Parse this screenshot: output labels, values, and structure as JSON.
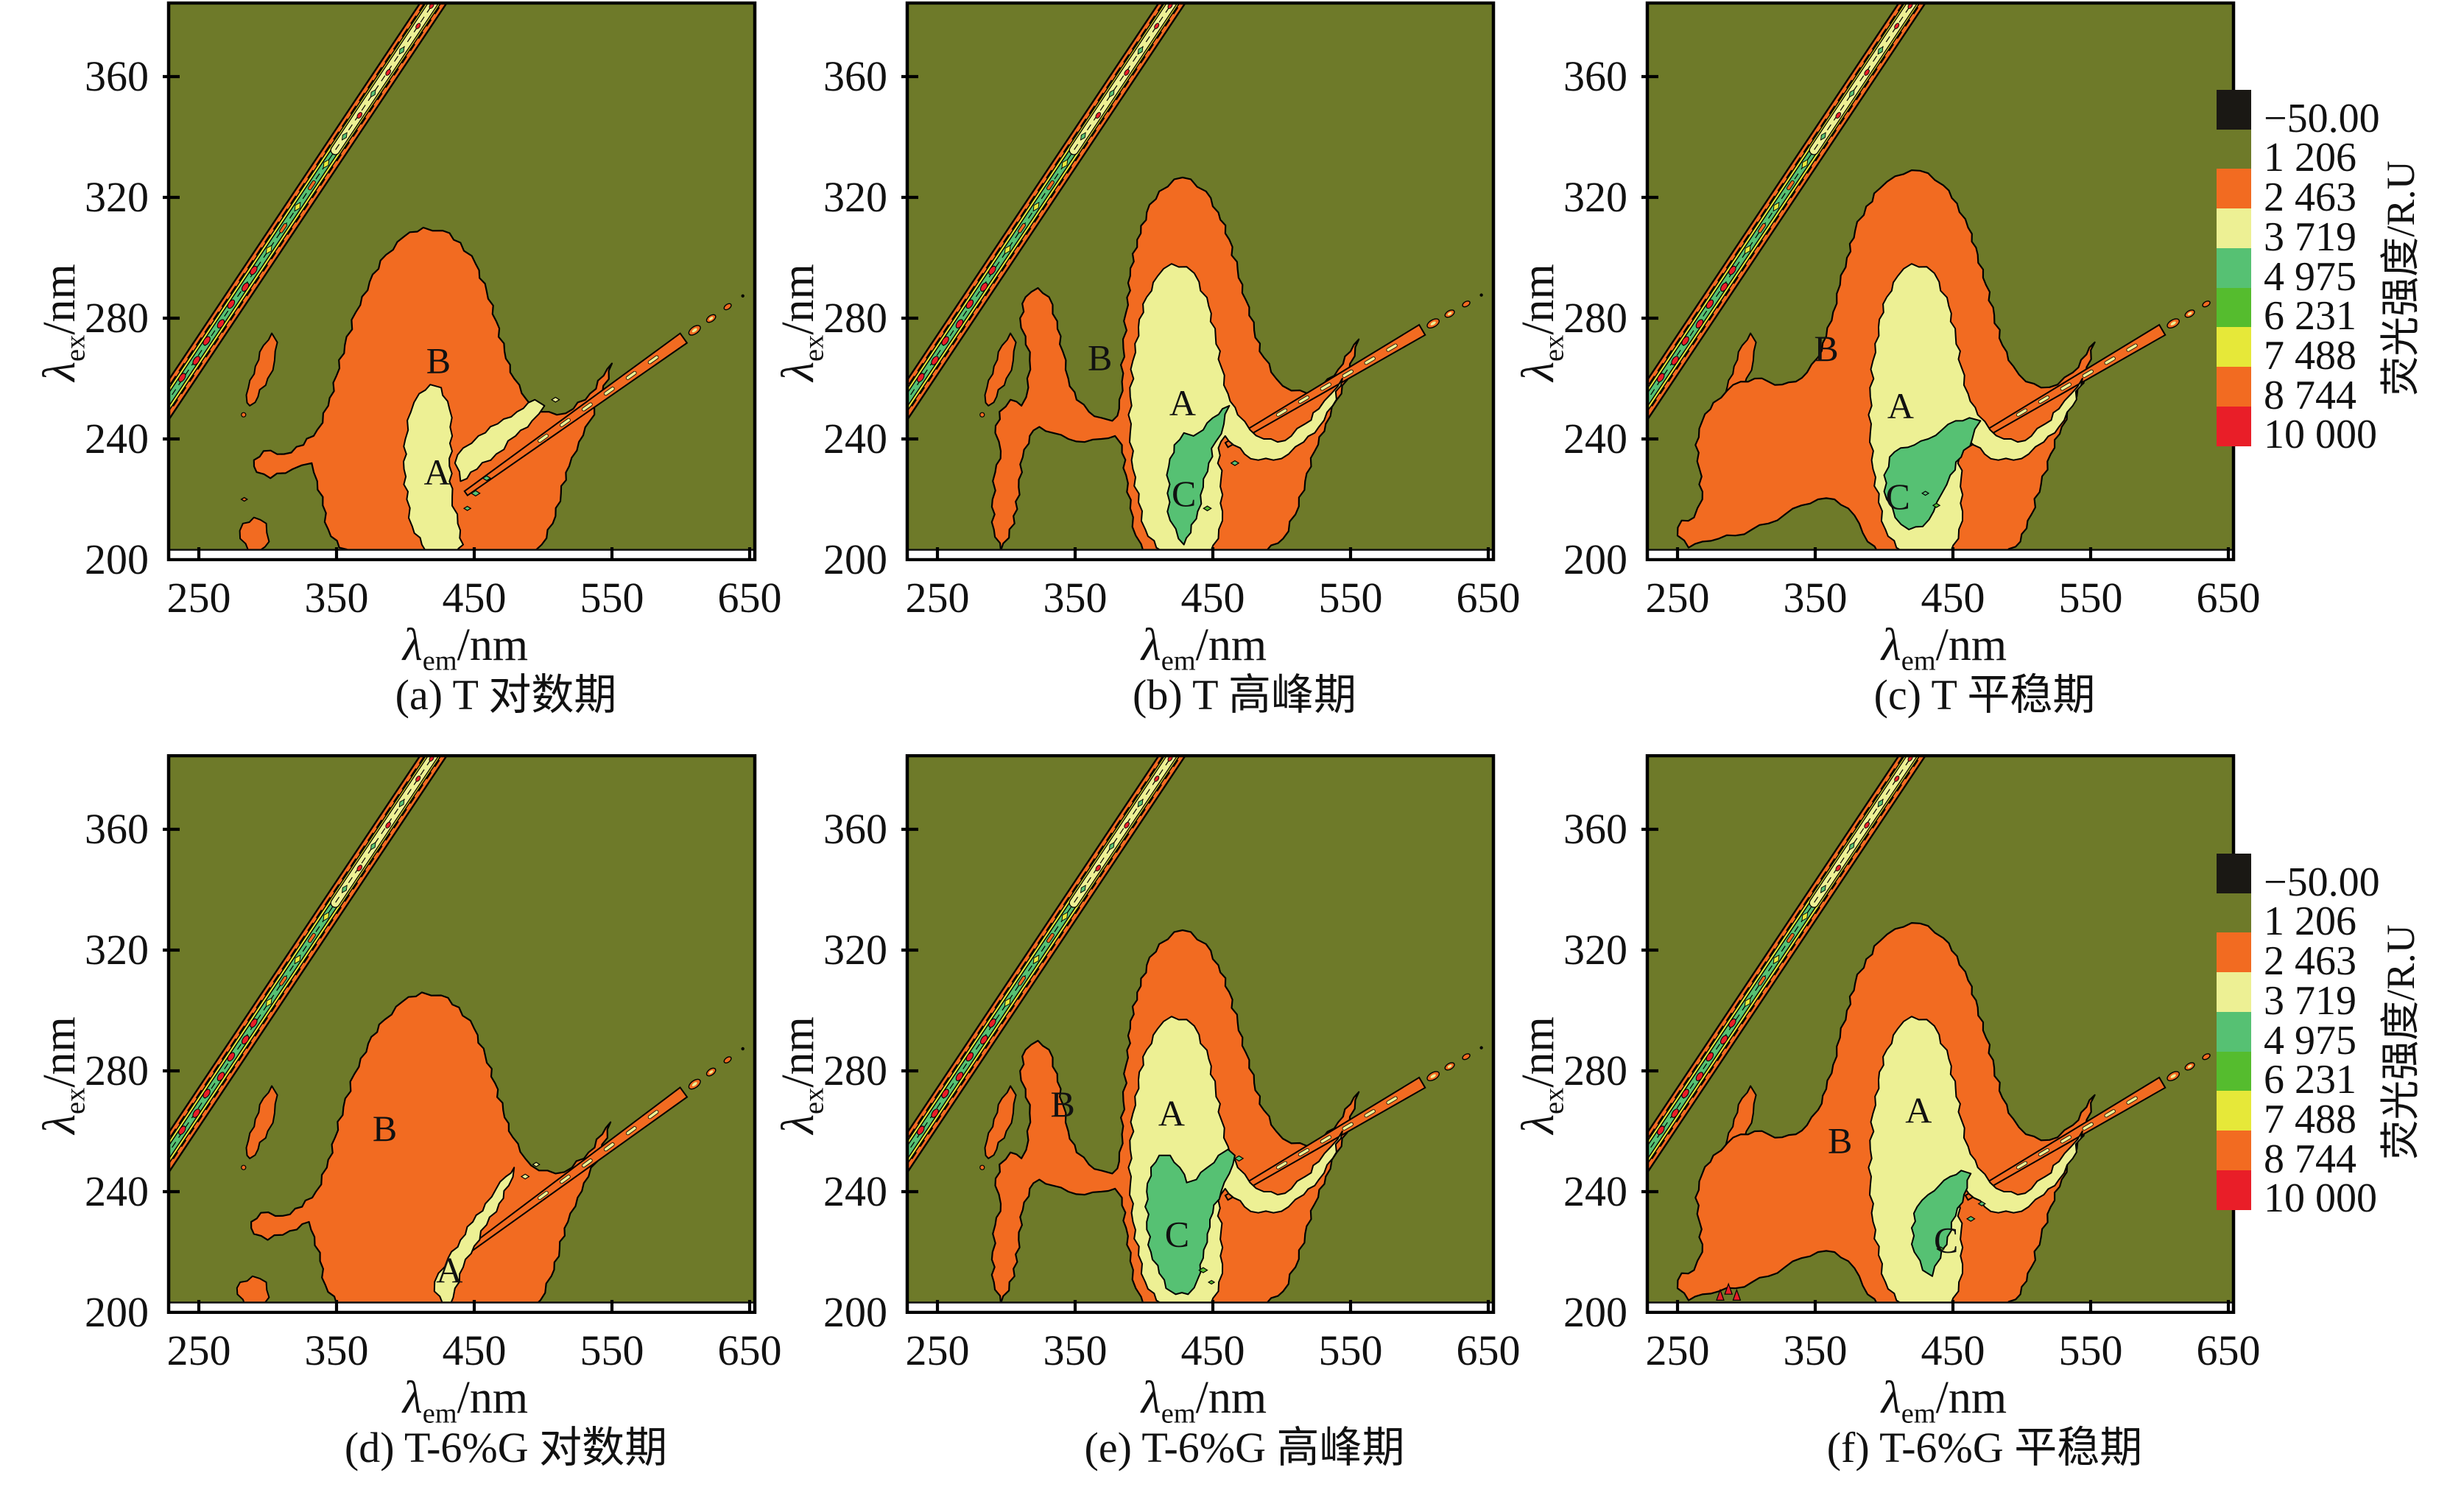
{
  "figure": {
    "colors": {
      "olive": "#6E7A29",
      "orange": "#F26B21",
      "paleYellow": "#EDF094",
      "green": "#56C173",
      "brightGreen": "#55BC2E",
      "yellow": "#E6E839",
      "red": "#E91E28",
      "black": "#1A1814",
      "axis": "#000000",
      "text": "#111111"
    },
    "axes": {
      "x_label_sym": "λ",
      "x_label_sub": "em",
      "x_label_unit": "/nm",
      "y_label_sym": "λ",
      "y_label_sub": "ex",
      "y_label_unit": "/nm",
      "x_ticks": [
        "250",
        "350",
        "450",
        "550",
        "650"
      ],
      "y_ticks": [
        "360",
        "320",
        "280",
        "240",
        "200"
      ]
    },
    "legend": {
      "title": "荧光强度/R.U",
      "levels": [
        "−50.00",
        "1 206",
        "2 463",
        "3 719",
        "4 975",
        "6 231",
        "7 488",
        "8 744",
        "10 000"
      ],
      "block_color_keys": [
        "black",
        "olive",
        "orange",
        "paleYellow",
        "green",
        "brightGreen",
        "yellow",
        "orange",
        "red"
      ]
    },
    "panels": [
      {
        "id": "a",
        "caption": "(a) T 对数期",
        "variant": "a",
        "labels": [
          {
            "t": "B",
            "em": 424,
            "ex": 266
          },
          {
            "t": "A",
            "em": 423,
            "ex": 229
          }
        ]
      },
      {
        "id": "b",
        "caption": "(b) T 高峰期",
        "variant": "b",
        "labels": [
          {
            "t": "B",
            "em": 368,
            "ex": 267
          },
          {
            "t": "A",
            "em": 428,
            "ex": 252
          },
          {
            "t": "C",
            "em": 429,
            "ex": 222
          }
        ]
      },
      {
        "id": "c",
        "caption": "(c) T 平稳期",
        "variant": "c",
        "labels": [
          {
            "t": "B",
            "em": 358,
            "ex": 270
          },
          {
            "t": "A",
            "em": 412,
            "ex": 251
          },
          {
            "t": "C",
            "em": 410,
            "ex": 221
          }
        ]
      },
      {
        "id": "d",
        "caption": "(d) T-6%G 对数期",
        "variant": "d",
        "labels": [
          {
            "t": "B",
            "em": 385,
            "ex": 261
          },
          {
            "t": "A",
            "em": 432,
            "ex": 214
          }
        ]
      },
      {
        "id": "e",
        "caption": "(e) T-6%G 高峰期",
        "variant": "e",
        "labels": [
          {
            "t": "B",
            "em": 341,
            "ex": 269
          },
          {
            "t": "A",
            "em": 420,
            "ex": 266
          },
          {
            "t": "C",
            "em": 424,
            "ex": 226
          }
        ]
      },
      {
        "id": "f",
        "caption": "(f) T-6%G 平稳期",
        "variant": "f",
        "labels": [
          {
            "t": "B",
            "em": 368,
            "ex": 257
          },
          {
            "t": "A",
            "em": 425,
            "ex": 267
          },
          {
            "t": "C",
            "em": 445,
            "ex": 224
          }
        ]
      }
    ]
  },
  "chart_data": {
    "type": "contour-eem-grid",
    "title": "Excitation-emission matrix fluorescence contour plots",
    "xlabel": "λem/nm",
    "ylabel": "λex/nm",
    "intensity_label": "荧光强度/R.U",
    "xlim": [
      227,
      655
    ],
    "ylim": [
      200,
      384
    ],
    "x_ticks": [
      250,
      350,
      450,
      550,
      650
    ],
    "y_ticks": [
      360,
      320,
      280,
      240,
      200
    ],
    "levels": [
      -50.0,
      1206,
      2463,
      3719,
      4975,
      6231,
      7488,
      8744,
      10000
    ],
    "level_colors": [
      "#1A1814",
      "#6E7A29",
      "#F26B21",
      "#EDF094",
      "#56C173",
      "#55BC2E",
      "#E6E839",
      "#F26B21",
      "#E91E28"
    ],
    "grid": false,
    "legend_position": "right-of-each-row",
    "panels": [
      {
        "id": "a",
        "sample": "T",
        "phase": "对数期",
        "caption": "(a) T 对数期",
        "peaks": [
          {
            "label": "B",
            "em": 424,
            "ex": 266,
            "level": "2463-3719"
          },
          {
            "label": "A",
            "em": 423,
            "ex": 229,
            "level": "3719-4975"
          }
        ],
        "features": [
          "first-order Rayleigh scatter band (em≈ex) with red >8744 cores",
          "second-order scatter line toward (650,289)",
          "small orange lobe em≈288-307 ex≈251-276",
          "detached orange spot em≈280-301 ex≈203-214"
        ]
      },
      {
        "id": "b",
        "sample": "T",
        "phase": "高峰期",
        "caption": "(b) T 高峰期",
        "peaks": [
          {
            "label": "B",
            "em": 368,
            "ex": 267,
            "level": "2463-3719"
          },
          {
            "label": "A",
            "em": 428,
            "ex": 252,
            "level": "3719-4975"
          },
          {
            "label": "C",
            "em": 429,
            "ex": 222,
            "level": "4975-6231"
          }
        ],
        "features": [
          "large 3719 region em≈390-545 ex≈200-298",
          "green 4975 core em≈417-462 ex≈205-251",
          "Rayleigh and second-order scatter bands"
        ]
      },
      {
        "id": "c",
        "sample": "T",
        "phase": "平稳期",
        "caption": "(c) T 平稳期",
        "peaks": [
          {
            "label": "B",
            "em": 358,
            "ex": 270,
            "level": "2463-3719"
          },
          {
            "label": "A",
            "em": 412,
            "ex": 251,
            "level": "3719-4975"
          },
          {
            "label": "C",
            "em": 410,
            "ex": 221,
            "level": "4975-6231"
          }
        ],
        "features": [
          "large 3719 region with green 4975 core em≈400-470 ex≈210-238",
          "scatter bands as in (a)"
        ]
      },
      {
        "id": "d",
        "sample": "T-6%G",
        "phase": "对数期",
        "caption": "(d) T-6%G 对数期",
        "peaks": [
          {
            "label": "B",
            "em": 385,
            "ex": 261,
            "level": "2463-3719"
          },
          {
            "label": "A",
            "em": 432,
            "ex": 214,
            "level": "3719"
          }
        ],
        "features": [
          "mostly 2463 orange region; only thin 3719 sliver along second-order line",
          "detached orange spot bottom-left"
        ]
      },
      {
        "id": "e",
        "sample": "T-6%G",
        "phase": "高峰期",
        "caption": "(e) T-6%G 高峰期",
        "peaks": [
          {
            "label": "B",
            "em": 341,
            "ex": 269,
            "level": "2463-3719"
          },
          {
            "label": "A",
            "em": 420,
            "ex": 266,
            "level": "3719-4975"
          },
          {
            "label": "C",
            "em": 424,
            "ex": 226,
            "level": "4975-6231"
          }
        ],
        "features": [
          "largest green 4975 region em≈400-470 ex≈205-252 with 6231 speck"
        ]
      },
      {
        "id": "f",
        "sample": "T-6%G",
        "phase": "平稳期",
        "caption": "(f) T-6%G 平稳期",
        "peaks": [
          {
            "label": "B",
            "em": 368,
            "ex": 257,
            "level": "2463-3719"
          },
          {
            "label": "A",
            "em": 425,
            "ex": 267,
            "level": "3719-4975"
          },
          {
            "label": "C",
            "em": 445,
            "ex": 224,
            "level": "4975-6231"
          }
        ],
        "features": [
          "small green 4975 core em≈420-463 ex≈212-247",
          "tiny red specks near em≈280-295 ex≈204-209"
        ]
      }
    ]
  }
}
